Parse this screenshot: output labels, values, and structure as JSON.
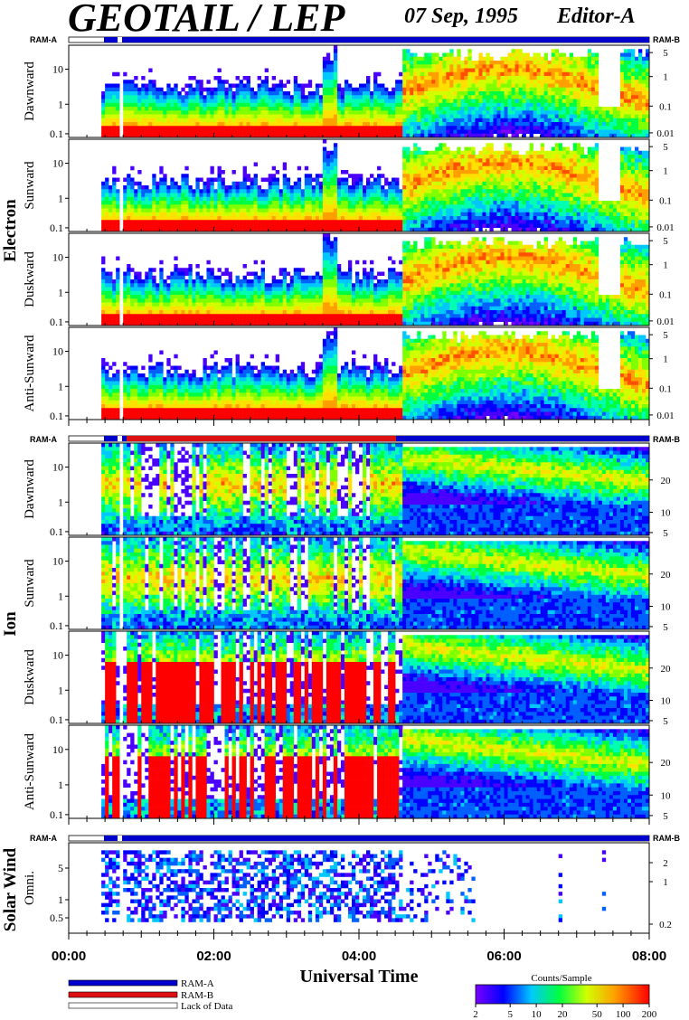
{
  "header": {
    "instrument": "GEOTAIL / LEP",
    "date": "07 Sep, 1995",
    "editor": "Editor-A"
  },
  "ram_labels": {
    "left": "RAM-A",
    "right": "RAM-B"
  },
  "groups": [
    "Electron",
    "Ion",
    "Solar Wind"
  ],
  "panels": [
    {
      "group": "Electron",
      "label": "Dawnward",
      "left_ticks": [
        "10",
        "1",
        "0.1"
      ],
      "right_ticks": [
        "5",
        "1",
        "0.1",
        "0.01"
      ]
    },
    {
      "group": "Electron",
      "label": "Sunward",
      "left_ticks": [
        "10",
        "1",
        "0.1"
      ],
      "right_ticks": [
        "5",
        "1",
        "0.1",
        "0.01"
      ]
    },
    {
      "group": "Electron",
      "label": "Duskward",
      "left_ticks": [
        "10",
        "1",
        "0.1"
      ],
      "right_ticks": [
        "5",
        "1",
        "0.1",
        "0.01"
      ]
    },
    {
      "group": "Electron",
      "label": "Anti-Sunward",
      "left_ticks": [
        "10",
        "1",
        "0.1"
      ],
      "right_ticks": [
        "5",
        "1",
        "0.1",
        "0.01"
      ]
    },
    {
      "group": "Ion",
      "label": "Dawnward",
      "left_ticks": [
        "10",
        "1",
        "0.1"
      ],
      "right_ticks": [
        "20",
        "10",
        "5"
      ]
    },
    {
      "group": "Ion",
      "label": "Sunward",
      "left_ticks": [
        "10",
        "1",
        "0.1"
      ],
      "right_ticks": [
        "20",
        "10",
        "5"
      ]
    },
    {
      "group": "Ion",
      "label": "Duskward",
      "left_ticks": [
        "10",
        "1",
        "0.1"
      ],
      "right_ticks": [
        "20",
        "10",
        "5"
      ]
    },
    {
      "group": "Ion",
      "label": "Anti-Sunward",
      "left_ticks": [
        "10",
        "1",
        "0.1"
      ],
      "right_ticks": [
        "20",
        "10",
        "5"
      ]
    },
    {
      "group": "Solar Wind",
      "label": "Omni.",
      "left_ticks": [
        "5",
        "1",
        "0.5"
      ],
      "right_ticks": [
        "2",
        "1",
        "0.2"
      ]
    }
  ],
  "x_axis": {
    "label": "Universal Time",
    "ticks": [
      "00:00",
      "02:00",
      "04:00",
      "06:00",
      "08:00"
    ]
  },
  "legend": {
    "items": [
      {
        "label": "RAM-A",
        "color": "#0000cc"
      },
      {
        "label": "RAM-B",
        "color": "#dd1111"
      },
      {
        "label": "Lack of Data",
        "color": "#ffffff"
      }
    ]
  },
  "colorbar": {
    "title": "Counts/Sample",
    "ticks": [
      "2",
      "5",
      "10",
      "20",
      "50",
      "100",
      "200"
    ]
  },
  "chart_data": {
    "type": "heatmap",
    "title": "GEOTAIL / LEP",
    "xlabel": "Universal Time",
    "x_range": [
      "00:00",
      "08:00"
    ],
    "colorscale": {
      "label": "Counts/Sample",
      "min": 2,
      "max": 200,
      "scale": "log"
    },
    "y_scale": "log",
    "series": [
      {
        "name": "Electron Dawnward"
      },
      {
        "name": "Electron Sunward"
      },
      {
        "name": "Electron Duskward"
      },
      {
        "name": "Electron Anti-Sunward"
      },
      {
        "name": "Ion Dawnward"
      },
      {
        "name": "Ion Sunward"
      },
      {
        "name": "Ion Duskward"
      },
      {
        "name": "Ion Anti-Sunward"
      },
      {
        "name": "Solar Wind Omni."
      }
    ],
    "data_start": "00:27",
    "grid": false
  }
}
